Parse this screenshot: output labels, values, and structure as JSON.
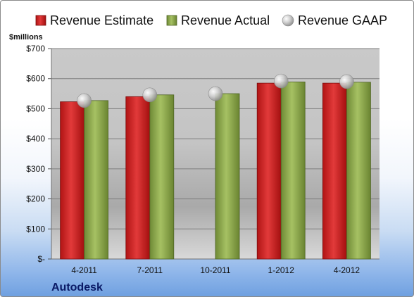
{
  "chart_data": {
    "type": "bar",
    "company": "Autodesk",
    "unit_label": "$millions",
    "categories": [
      "4-2011",
      "7-2011",
      "10-2011",
      "1-2012",
      "4-2012"
    ],
    "series": [
      {
        "name": "Revenue Estimate",
        "kind": "bar",
        "color": "#d21f1f",
        "values": [
          523,
          540,
          null,
          585,
          585
        ]
      },
      {
        "name": "Revenue Actual",
        "kind": "bar",
        "color": "#8faa4e",
        "values": [
          527,
          546,
          550,
          589,
          588
        ]
      },
      {
        "name": "Revenue GAAP",
        "kind": "marker",
        "color": "#c8c8c8",
        "values": [
          527,
          546,
          550,
          592,
          590
        ]
      }
    ],
    "ylim": [
      0,
      700
    ],
    "y_ticks": [
      0,
      100,
      200,
      300,
      400,
      500,
      600,
      700
    ],
    "y_tick_labels": [
      "$-",
      "$100",
      "$200",
      "$300",
      "$400",
      "$500",
      "$600",
      "$700"
    ],
    "grid": true,
    "legend_position": "top"
  }
}
